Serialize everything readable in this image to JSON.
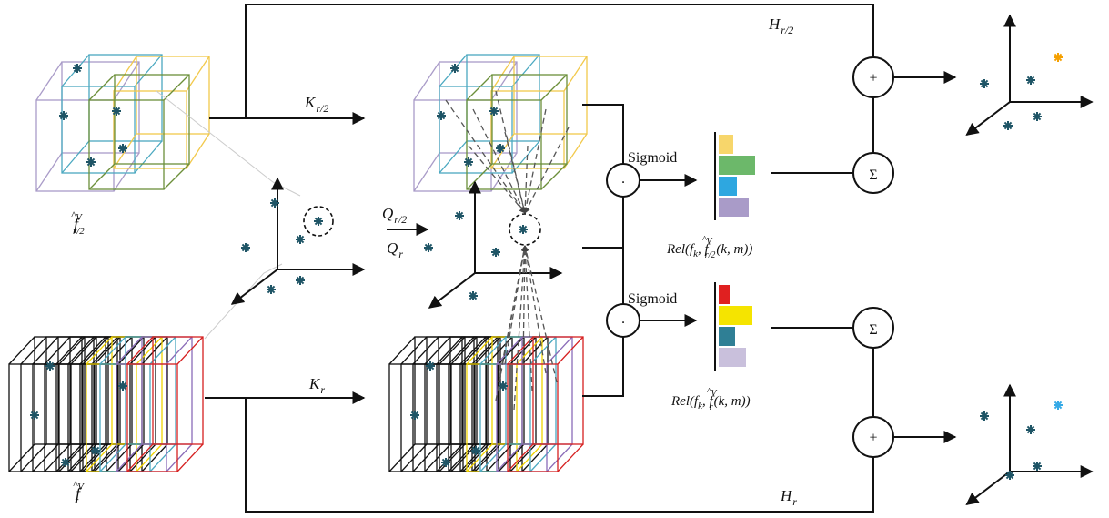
{
  "labels": {
    "k_half": {
      "main": "K",
      "sub": "r/2"
    },
    "k_full": {
      "main": "K",
      "sub": "r"
    },
    "q_half": {
      "main": "Q",
      "sub": "r/2"
    },
    "q_full": {
      "main": "Q",
      "sub": "r"
    },
    "h_half": {
      "main": "H",
      "sub": "r/2"
    },
    "h_full": {
      "main": "H",
      "sub": "r"
    },
    "f_half": {
      "main": "f",
      "hat": "^",
      "sup": "V",
      "sub": "r/2"
    },
    "f_full": {
      "main": "f",
      "hat": "^",
      "sup": "V",
      "sub": "r"
    }
  },
  "operators": {
    "dot_top": "·",
    "dot_bottom": "·",
    "plus_top": "+",
    "plus_bottom": "+",
    "sum_top": "Σ",
    "sum_bottom": "Σ",
    "sigmoid_top": "Sigmoid",
    "sigmoid_bottom": "Sigmoid"
  },
  "relevance": {
    "top": {
      "func": "Rel(f",
      "sub1": "k",
      "sep": ", f",
      "hat": "^",
      "sup": "V",
      "sub2": "r/2",
      "args": "(k, m))"
    },
    "bottom": {
      "func": "Rel(f",
      "sub1": "k",
      "sep": ", f",
      "hat": "^",
      "sup": "V",
      "sub2": "r",
      "args": "(k, m))"
    }
  }
}
